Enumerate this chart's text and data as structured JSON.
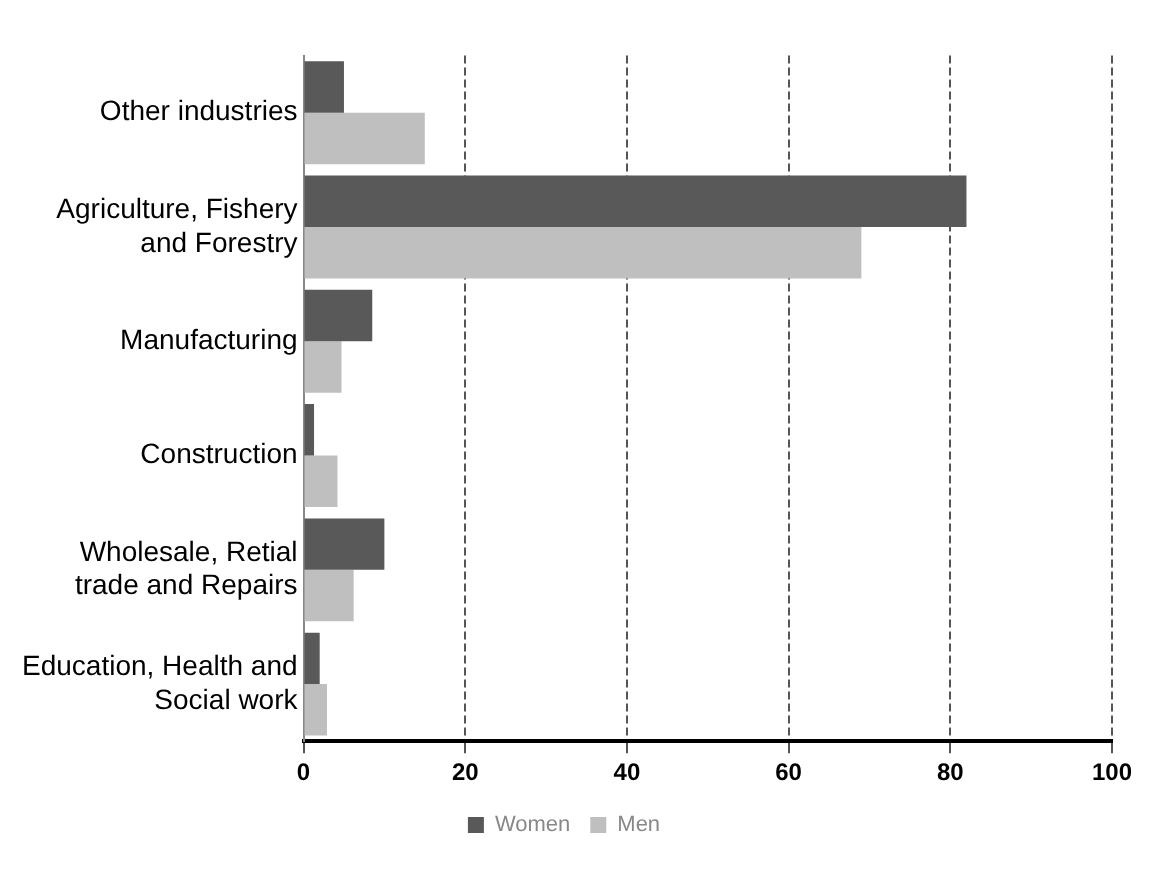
{
  "chart_data": {
    "type": "bar",
    "orientation": "horizontal",
    "categories": [
      "Other industries",
      "Agriculture, Fishery and Forestry",
      "Manufacturing",
      "Construction",
      "Wholesale, Retial trade and Repairs",
      "Education, Health and Social work"
    ],
    "series": [
      {
        "name": "Women",
        "color": "#595959",
        "values": [
          5,
          82,
          8.5,
          1.3,
          10,
          2
        ]
      },
      {
        "name": "Men",
        "color": "#bfbfbf",
        "values": [
          15,
          69,
          4.7,
          4.2,
          6.2,
          2.9
        ]
      }
    ],
    "xlim": [
      0,
      100
    ],
    "xticks": [
      0,
      20,
      40,
      60,
      80,
      100
    ],
    "grid": "x",
    "legend": "bottom"
  }
}
